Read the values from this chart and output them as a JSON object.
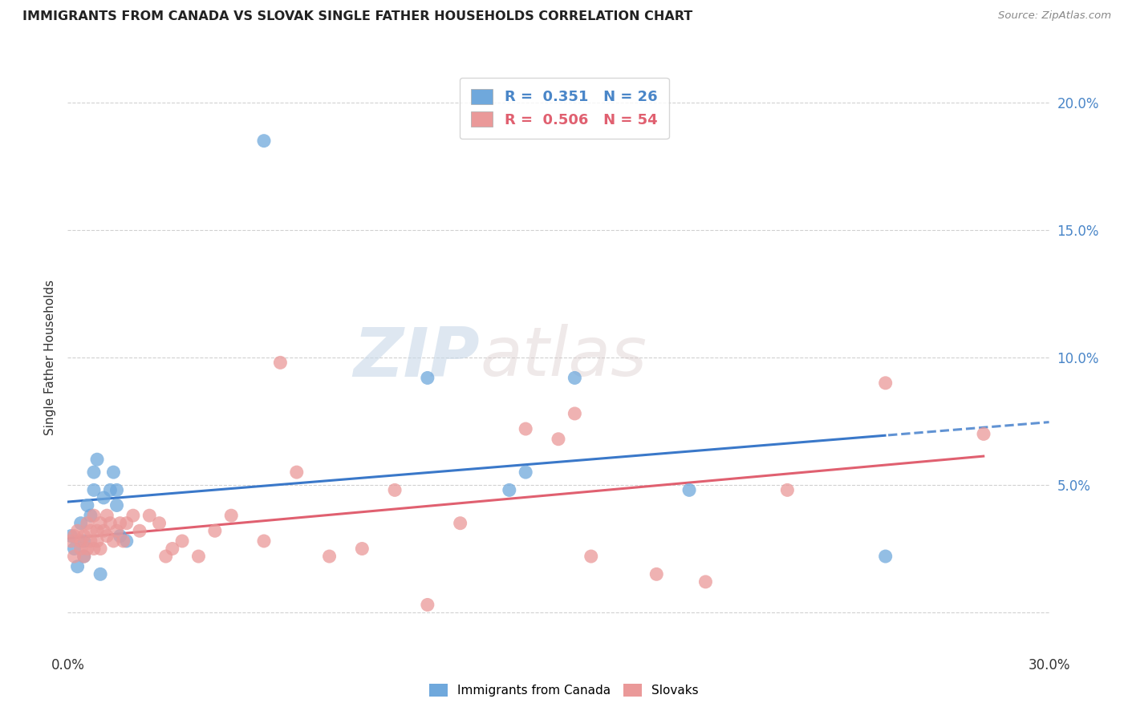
{
  "title": "IMMIGRANTS FROM CANADA VS SLOVAK SINGLE FATHER HOUSEHOLDS CORRELATION CHART",
  "source": "Source: ZipAtlas.com",
  "ylabel": "Single Father Households",
  "xlim": [
    0.0,
    0.3
  ],
  "ylim": [
    -0.015,
    0.215
  ],
  "yticks": [
    0.0,
    0.05,
    0.1,
    0.15,
    0.2
  ],
  "ytick_labels": [
    "",
    "5.0%",
    "10.0%",
    "15.0%",
    "20.0%"
  ],
  "xticks": [
    0.0,
    0.05,
    0.1,
    0.15,
    0.2,
    0.25,
    0.3
  ],
  "xtick_labels": [
    "0.0%",
    "",
    "",
    "",
    "",
    "",
    "30.0%"
  ],
  "color_canada": "#6fa8dc",
  "color_slovak": "#ea9999",
  "trendline_canada_color": "#3a78c9",
  "trendline_slovak_color": "#e06070",
  "watermark_zip": "ZIP",
  "watermark_atlas": "atlas",
  "canada_scatter": [
    [
      0.001,
      0.03
    ],
    [
      0.002,
      0.025
    ],
    [
      0.003,
      0.018
    ],
    [
      0.004,
      0.035
    ],
    [
      0.005,
      0.028
    ],
    [
      0.005,
      0.022
    ],
    [
      0.006,
      0.042
    ],
    [
      0.007,
      0.038
    ],
    [
      0.008,
      0.055
    ],
    [
      0.008,
      0.048
    ],
    [
      0.009,
      0.06
    ],
    [
      0.01,
      0.015
    ],
    [
      0.011,
      0.045
    ],
    [
      0.013,
      0.048
    ],
    [
      0.014,
      0.055
    ],
    [
      0.015,
      0.042
    ],
    [
      0.015,
      0.048
    ],
    [
      0.016,
      0.03
    ],
    [
      0.018,
      0.028
    ],
    [
      0.06,
      0.185
    ],
    [
      0.11,
      0.092
    ],
    [
      0.135,
      0.048
    ],
    [
      0.14,
      0.055
    ],
    [
      0.155,
      0.092
    ],
    [
      0.19,
      0.048
    ],
    [
      0.25,
      0.022
    ]
  ],
  "slovak_scatter": [
    [
      0.001,
      0.028
    ],
    [
      0.002,
      0.03
    ],
    [
      0.002,
      0.022
    ],
    [
      0.003,
      0.032
    ],
    [
      0.004,
      0.028
    ],
    [
      0.004,
      0.025
    ],
    [
      0.005,
      0.03
    ],
    [
      0.005,
      0.022
    ],
    [
      0.006,
      0.035
    ],
    [
      0.006,
      0.025
    ],
    [
      0.007,
      0.032
    ],
    [
      0.007,
      0.028
    ],
    [
      0.008,
      0.038
    ],
    [
      0.008,
      0.025
    ],
    [
      0.009,
      0.032
    ],
    [
      0.009,
      0.028
    ],
    [
      0.01,
      0.035
    ],
    [
      0.01,
      0.025
    ],
    [
      0.011,
      0.032
    ],
    [
      0.012,
      0.038
    ],
    [
      0.012,
      0.03
    ],
    [
      0.013,
      0.035
    ],
    [
      0.014,
      0.028
    ],
    [
      0.015,
      0.032
    ],
    [
      0.016,
      0.035
    ],
    [
      0.017,
      0.028
    ],
    [
      0.018,
      0.035
    ],
    [
      0.02,
      0.038
    ],
    [
      0.022,
      0.032
    ],
    [
      0.025,
      0.038
    ],
    [
      0.028,
      0.035
    ],
    [
      0.03,
      0.022
    ],
    [
      0.032,
      0.025
    ],
    [
      0.035,
      0.028
    ],
    [
      0.04,
      0.022
    ],
    [
      0.045,
      0.032
    ],
    [
      0.05,
      0.038
    ],
    [
      0.06,
      0.028
    ],
    [
      0.065,
      0.098
    ],
    [
      0.07,
      0.055
    ],
    [
      0.08,
      0.022
    ],
    [
      0.09,
      0.025
    ],
    [
      0.1,
      0.048
    ],
    [
      0.11,
      0.003
    ],
    [
      0.12,
      0.035
    ],
    [
      0.14,
      0.072
    ],
    [
      0.15,
      0.068
    ],
    [
      0.155,
      0.078
    ],
    [
      0.16,
      0.022
    ],
    [
      0.18,
      0.015
    ],
    [
      0.195,
      0.012
    ],
    [
      0.22,
      0.048
    ],
    [
      0.25,
      0.09
    ],
    [
      0.28,
      0.07
    ]
  ]
}
